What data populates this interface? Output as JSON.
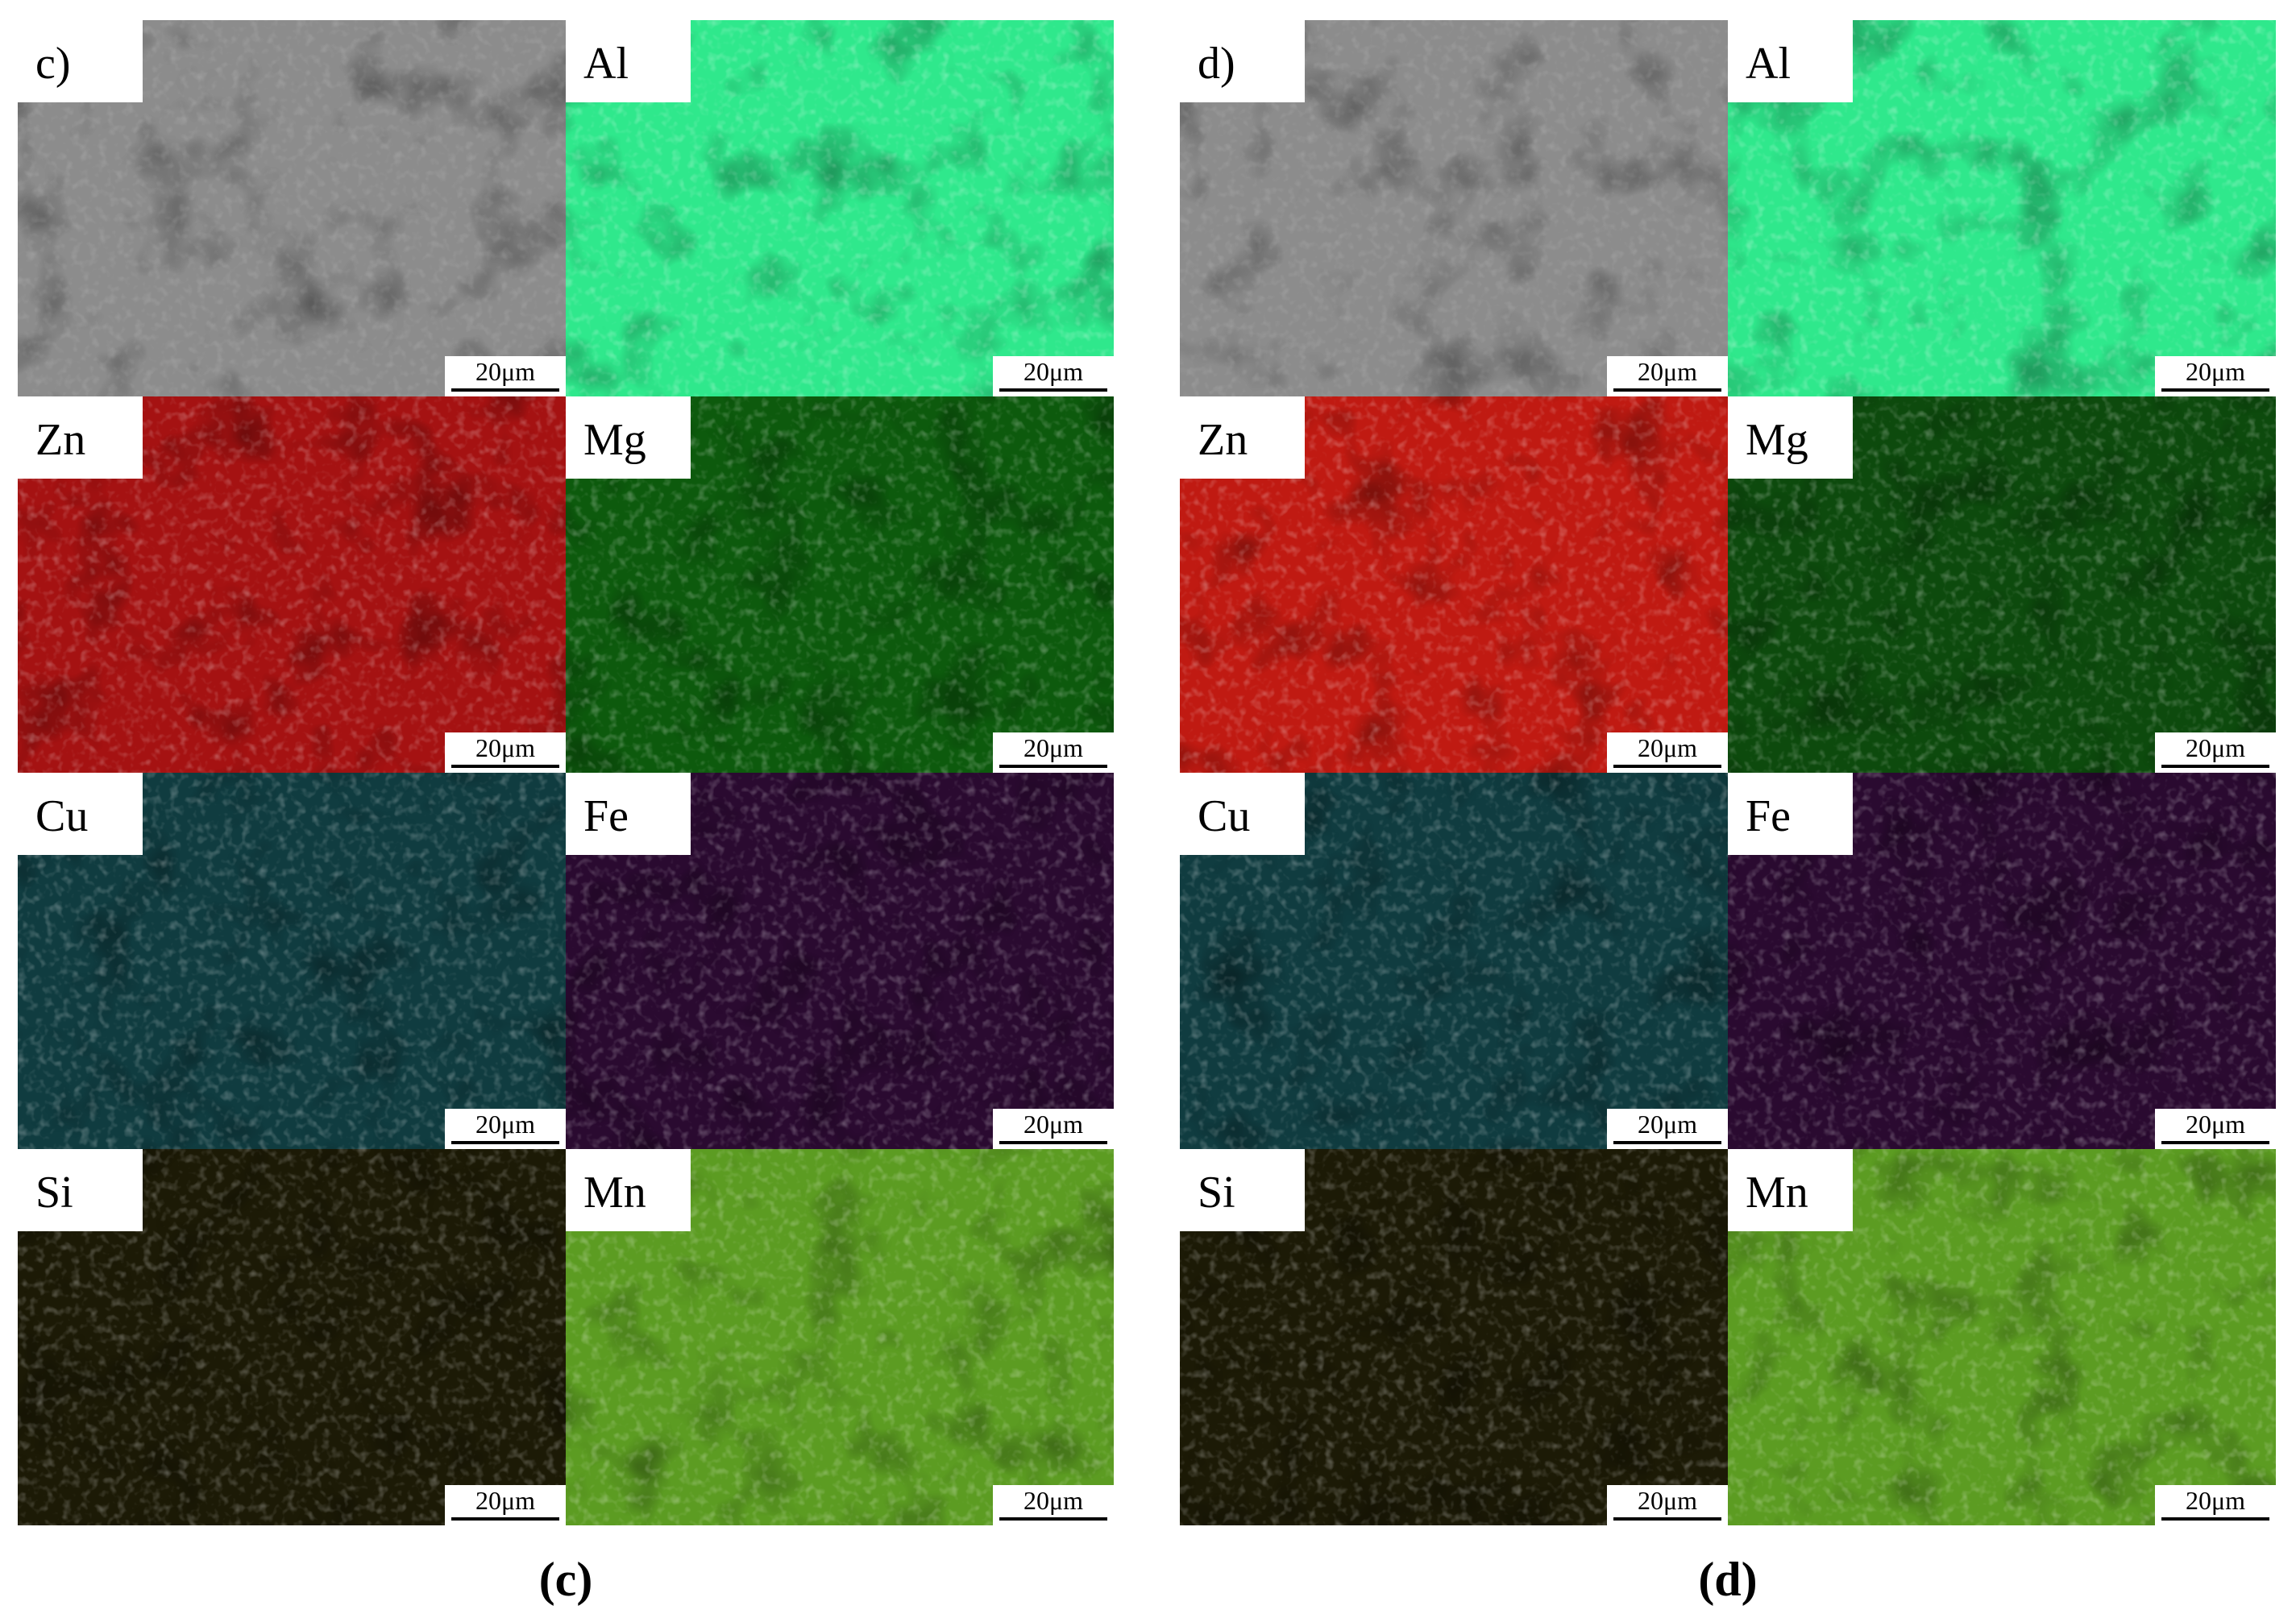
{
  "figures": [
    {
      "caption": "(c)",
      "panels": [
        {
          "label": "c)",
          "scale_bar": "20μm",
          "color": "#8c8c8c"
        },
        {
          "label": "Al",
          "scale_bar": "20μm",
          "color": "#2fe88c"
        },
        {
          "label": "Zn",
          "scale_bar": "20μm",
          "color": "#a51212"
        },
        {
          "label": "Mg",
          "scale_bar": "20μm",
          "color": "#0d5a0d"
        },
        {
          "label": "Cu",
          "scale_bar": "20μm",
          "color": "#103c40"
        },
        {
          "label": "Fe",
          "scale_bar": "20μm",
          "color": "#2a0a30"
        },
        {
          "label": "Si",
          "scale_bar": "20μm",
          "color": "#1c1a06"
        },
        {
          "label": "Mn",
          "scale_bar": "20μm",
          "color": "#5c9c22"
        }
      ]
    },
    {
      "caption": "(d)",
      "panels": [
        {
          "label": "d)",
          "scale_bar": "20μm",
          "color": "#8c8c8c"
        },
        {
          "label": "Al",
          "scale_bar": "20μm",
          "color": "#2fe88c"
        },
        {
          "label": "Zn",
          "scale_bar": "20μm",
          "color": "#c01a12"
        },
        {
          "label": "Mg",
          "scale_bar": "20μm",
          "color": "#0d4a0d"
        },
        {
          "label": "Cu",
          "scale_bar": "20μm",
          "color": "#103c40"
        },
        {
          "label": "Fe",
          "scale_bar": "20μm",
          "color": "#2a0a30"
        },
        {
          "label": "Si",
          "scale_bar": "20μm",
          "color": "#1c1a06"
        },
        {
          "label": "Mn",
          "scale_bar": "20μm",
          "color": "#5c9c22"
        }
      ]
    }
  ]
}
